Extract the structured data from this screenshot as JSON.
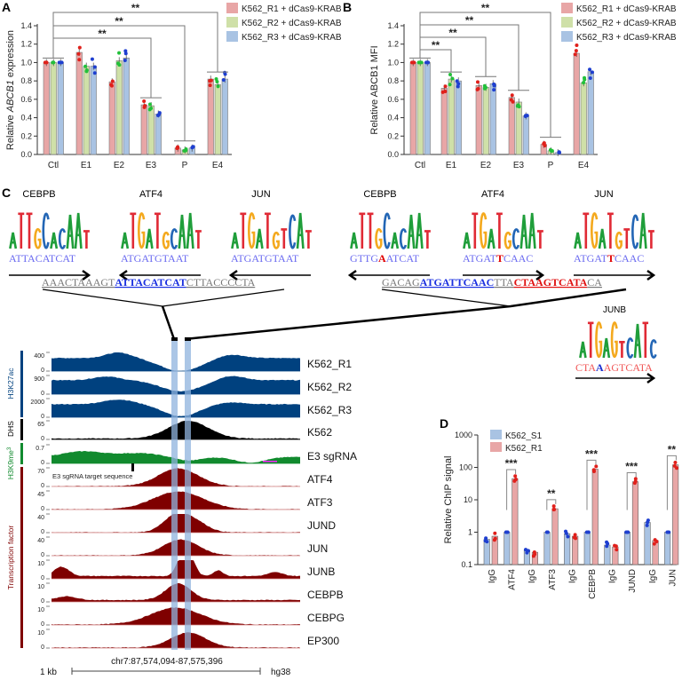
{
  "colors": {
    "r1": "#e8a6a6",
    "r2": "#cfe0a8",
    "r3": "#a9c3e3",
    "dot_r1": "#e0201b",
    "dot_r2": "#22c03a",
    "dot_r3": "#1e3fd0",
    "h3k27ac": "#00417f",
    "dhs": "#000000",
    "h3k9me3": "#118a2e",
    "tf": "#7f0000",
    "highlight": "#8fb3dd"
  },
  "panels": {
    "a": "A",
    "b": "B",
    "c": "C",
    "d": "D"
  },
  "chart_data": [
    {
      "type": "bar",
      "panel": "A",
      "ylabel_pre": "Relative ",
      "ylabel_italic": "ABCB1",
      "ylabel_post": " expression",
      "ylim": [
        0,
        1.4
      ],
      "yticks": [
        "0.0",
        "0.2",
        "0.4",
        "0.6",
        "0.8",
        "1.0",
        "1.2",
        "1.4"
      ],
      "categories": [
        "Ctl",
        "E1",
        "E2",
        "E3",
        "P",
        "E4"
      ],
      "series": [
        {
          "name": "K562_R1 + dCas9-KRAB",
          "values": [
            1.0,
            1.11,
            0.79,
            0.54,
            0.07,
            0.82
          ]
        },
        {
          "name": "K562_R2 + dCas9-KRAB",
          "values": [
            1.0,
            0.96,
            1.02,
            0.53,
            0.05,
            0.76
          ]
        },
        {
          "name": "K562_R3 + dCas9-KRAB",
          "values": [
            1.0,
            0.96,
            1.05,
            0.44,
            0.07,
            0.82
          ]
        }
      ],
      "significance": [
        {
          "from": "Ctl",
          "to": "E4",
          "label": "**"
        },
        {
          "from": "Ctl",
          "to": "P",
          "label": "**"
        },
        {
          "from": "Ctl",
          "to": "E3",
          "label": "**"
        }
      ]
    },
    {
      "type": "bar",
      "panel": "B",
      "ylabel": "Relative ABCB1 MFI",
      "ylim": [
        0,
        1.4
      ],
      "yticks": [
        "0.0",
        "0.2",
        "0.4",
        "0.6",
        "0.8",
        "1.0",
        "1.2",
        "1.4"
      ],
      "categories": [
        "Ctl",
        "E1",
        "E2",
        "E3",
        "P",
        "E4"
      ],
      "series": [
        {
          "name": "K562_R1 + dCas9-KRAB",
          "values": [
            1.0,
            0.72,
            0.75,
            0.62,
            0.11,
            1.1
          ]
        },
        {
          "name": "K562_R2 + dCas9-KRAB",
          "values": [
            1.0,
            0.82,
            0.73,
            0.57,
            0.04,
            0.78
          ]
        },
        {
          "name": "K562_R3 + dCas9-KRAB",
          "values": [
            1.0,
            0.8,
            0.77,
            0.42,
            0.02,
            0.9
          ]
        }
      ],
      "significance": [
        {
          "from": "Ctl",
          "to": "P",
          "label": "**"
        },
        {
          "from": "Ctl",
          "to": "E3",
          "label": "**"
        },
        {
          "from": "Ctl",
          "to": "E2",
          "label": "**"
        },
        {
          "from": "Ctl",
          "to": "E1",
          "label": "**"
        }
      ]
    },
    {
      "type": "bar",
      "panel": "D",
      "yscale": "log",
      "ylabel": "Relative ChIP signal",
      "ylim": [
        0.1,
        1000
      ],
      "yticks": [
        "0.1",
        "1",
        "10",
        "100",
        "1000"
      ],
      "categories": [
        "IgG",
        "ATF4",
        "IgG",
        "ATF3",
        "IgG",
        "CEBPB",
        "IgG",
        "JUND",
        "IgG",
        "JUN"
      ],
      "series": [
        {
          "name": "K562_S1",
          "values": [
            0.6,
            1,
            0.28,
            1,
            0.9,
            1,
            0.4,
            1,
            2.0,
            1
          ]
        },
        {
          "name": "K562_R1",
          "values": [
            0.75,
            45,
            0.24,
            5.3,
            0.75,
            88,
            0.35,
            36,
            0.55,
            120
          ]
        }
      ],
      "significance": [
        {
          "category": "ATF4",
          "label": "***"
        },
        {
          "category": "ATF3",
          "label": "**"
        },
        {
          "category": "CEBPB",
          "label": "***"
        },
        {
          "category": "JUND",
          "label": "***"
        },
        {
          "category": "JUN",
          "label": "**"
        }
      ]
    }
  ],
  "motifs": {
    "left": [
      {
        "name": "CEBPB",
        "logo": "ATTGCACAAT",
        "seq": "ATTACATCAT",
        "direction": "right"
      },
      {
        "name": "ATF4",
        "logo": "ATGATGCAAT",
        "seq": "ATGATGTAAT",
        "direction": "left"
      },
      {
        "name": "JUN",
        "logo": "ATGATGTCAT",
        "seq": "ATGATGTAAT",
        "direction": "left"
      }
    ],
    "right": [
      {
        "name": "CEBPB",
        "logo": "ATTGCACAAT",
        "seq_pre": "GTTG",
        "seq_mut": "A",
        "seq_post": "ATCAT",
        "direction": "left"
      },
      {
        "name": "ATF4",
        "logo": "ATGATGCAAT",
        "seq_pre": "ATGAT",
        "seq_mut": "T",
        "seq_post": "CAAC",
        "direction": "right"
      },
      {
        "name": "JUN",
        "logo": "ATGATGTCAT",
        "seq_pre": "ATGAT",
        "seq_mut": "T",
        "seq_post": "CAAC",
        "direction": "right"
      }
    ],
    "junb": {
      "name": "JUNB",
      "logo": "ATGAGTCATC",
      "seq_pre": "CTA",
      "seq_mut": "A",
      "seq_post": "AGTCATA",
      "direction": "right"
    },
    "left_context": {
      "pre": "AAACTAAAGT",
      "site": "ATTACATCAT",
      "post": "CTTACCCCTA"
    },
    "right_context": {
      "pre": "GACAG",
      "site1": "ATGATTCAAC",
      "mid": "TTA",
      "site2": "CTAAGTCATA",
      "post": "CA"
    }
  },
  "tracks": {
    "groups": [
      {
        "label": "H3K27ac",
        "color": "#00417f"
      },
      {
        "label": "DHS",
        "color": "#000000"
      },
      {
        "label": "H3K9me3",
        "color": "#118a2e"
      },
      {
        "label": "Transcription factor",
        "color": "#7f0000"
      }
    ],
    "rows": [
      {
        "name": "K562_R1",
        "max": "400",
        "min": "0",
        "group": 0
      },
      {
        "name": "K562_R2",
        "max": "900",
        "min": "0",
        "group": 0
      },
      {
        "name": "K562_R3",
        "max": "2000",
        "min": "0",
        "group": 0
      },
      {
        "name": "K562",
        "max": "65",
        "min": "0",
        "group": 1
      },
      {
        "name": "E3 sgRNA",
        "max": "0.7",
        "min": "0",
        "group": 2
      },
      {
        "name": "ATF4",
        "max": "70",
        "min": "0",
        "group": 3
      },
      {
        "name": "ATF3",
        "max": "45",
        "min": "0",
        "group": 3
      },
      {
        "name": "JUND",
        "max": "40",
        "min": "0",
        "group": 3
      },
      {
        "name": "JUN",
        "max": "40",
        "min": "0",
        "group": 3
      },
      {
        "name": "JUNB",
        "max": "10",
        "min": "0",
        "group": 3
      },
      {
        "name": "CEBPB",
        "max": "10",
        "min": "0",
        "group": 3
      },
      {
        "name": "CEBPG",
        "max": "10",
        "min": "0",
        "group": 3
      },
      {
        "name": "EP300",
        "max": "10",
        "min": "0",
        "group": 3
      }
    ],
    "sgrna_label": "E3 sgRNA target sequence",
    "scale_label": "1 kb",
    "locus": "chr7:87,574,094-87,575,396",
    "genome": "hg38"
  }
}
